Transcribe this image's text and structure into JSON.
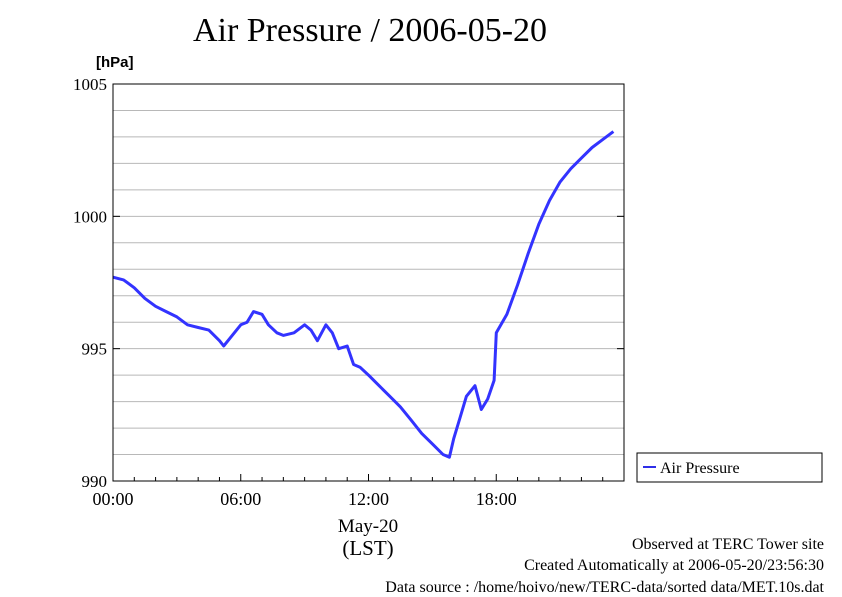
{
  "chart_data": {
    "type": "line",
    "title": "Air Pressure / 2006-05-20",
    "ylabel": "[hPa]",
    "xlabel_date": "May-20",
    "xlabel_zone": "(LST)",
    "ylim": [
      990,
      1005
    ],
    "yticks": [
      990,
      995,
      1000,
      1005
    ],
    "xlim_hours": [
      0,
      24
    ],
    "xticks": [
      {
        "hour": 0,
        "label": "00:00"
      },
      {
        "hour": 6,
        "label": "06:00"
      },
      {
        "hour": 12,
        "label": "12:00"
      },
      {
        "hour": 18,
        "label": "18:00"
      }
    ],
    "grid": true,
    "legend_position": "right",
    "series": [
      {
        "name": "Air Pressure",
        "color": "#3333ff",
        "x": [
          0,
          0.5,
          1,
          1.5,
          2,
          2.5,
          3,
          3.5,
          4,
          4.5,
          5,
          5.2,
          5.5,
          6,
          6.3,
          6.6,
          7,
          7.3,
          7.7,
          8,
          8.5,
          9,
          9.3,
          9.6,
          10,
          10.3,
          10.6,
          11,
          11.3,
          11.6,
          12,
          12.5,
          13,
          13.5,
          14,
          14.5,
          15,
          15.5,
          15.8,
          16,
          16.3,
          16.6,
          17,
          17.3,
          17.6,
          17.9,
          18,
          18.5,
          19,
          19.5,
          20,
          20.5,
          21,
          21.5,
          22,
          22.5,
          23,
          23.5
        ],
        "values": [
          997.7,
          997.6,
          997.3,
          996.9,
          996.6,
          996.4,
          996.2,
          995.9,
          995.8,
          995.7,
          995.3,
          995.1,
          995.4,
          995.9,
          996.0,
          996.4,
          996.3,
          995.9,
          995.6,
          995.5,
          995.6,
          995.9,
          995.7,
          995.3,
          995.9,
          995.6,
          995.0,
          995.1,
          994.4,
          994.3,
          994.0,
          993.6,
          993.2,
          992.8,
          992.3,
          991.8,
          991.4,
          991.0,
          990.9,
          991.6,
          992.4,
          993.2,
          993.6,
          992.7,
          993.1,
          993.8,
          995.6,
          996.3,
          997.4,
          998.6,
          999.7,
          1000.6,
          1001.3,
          1001.8,
          1002.2,
          1002.6,
          1002.9,
          1003.2
        ]
      }
    ]
  },
  "footer": {
    "site": "Observed at TERC Tower site",
    "created": "Created Automatically at 2006-05-20/23:56:30",
    "source": "Data source : /home/hoivo/new/TERC-data/sorted  data/MET.10s.dat"
  }
}
